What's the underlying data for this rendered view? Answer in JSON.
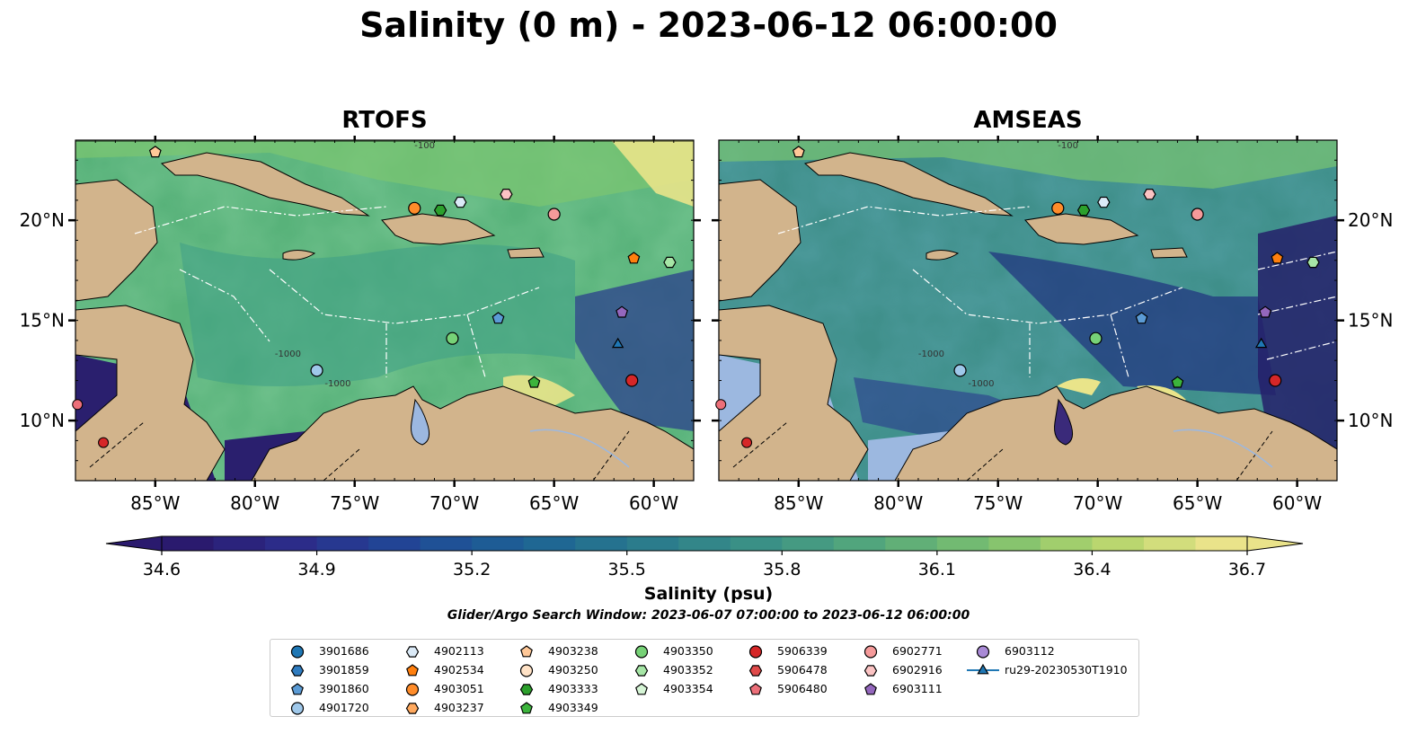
{
  "figure": {
    "suptitle": "Salinity (0 m) - 2023-06-12 06:00:00"
  },
  "chart_data": [
    {
      "type": "heatmap",
      "title": "RTOFS",
      "variable": "Salinity (0 m)",
      "xlim": [
        -89,
        -58
      ],
      "ylim": [
        7,
        24
      ],
      "xticks": [
        -85,
        -80,
        -75,
        -70,
        -65,
        -60
      ],
      "xtick_labels": [
        "85°W",
        "80°W",
        "75°W",
        "70°W",
        "65°W",
        "60°W"
      ],
      "yticks": [
        10,
        15,
        20
      ],
      "ytick_labels": [
        "10°N",
        "15°N",
        "20°N"
      ],
      "ytick_side": "left",
      "contour_labels": [
        "-1000",
        "-1000",
        "-100"
      ]
    },
    {
      "type": "heatmap",
      "title": "AMSEAS",
      "variable": "Salinity (0 m)",
      "xlim": [
        -89,
        -58
      ],
      "ylim": [
        7,
        24
      ],
      "xticks": [
        -85,
        -80,
        -75,
        -70,
        -65,
        -60
      ],
      "xtick_labels": [
        "85°W",
        "80°W",
        "75°W",
        "70°W",
        "65°W",
        "60°W"
      ],
      "yticks": [
        10,
        15,
        20
      ],
      "ytick_labels": [
        "10°N",
        "15°N",
        "20°N"
      ],
      "ytick_side": "right",
      "contour_labels": [
        "-1000",
        "-1000",
        "-100"
      ]
    },
    {
      "type": "scatter",
      "observations": [
        {
          "id": "3901686",
          "marker": "circle",
          "color": "#1f77b4"
        },
        {
          "id": "3901859",
          "marker": "hexagon",
          "color": "#2f7cc0"
        },
        {
          "id": "3901860",
          "marker": "pentagon",
          "color": "#5b9bd5",
          "lon": -67.8,
          "lat": 15.1
        },
        {
          "id": "4901720",
          "marker": "circle",
          "color": "#9fc8ea",
          "lon": -76.9,
          "lat": 12.5
        },
        {
          "id": "4902113",
          "marker": "hexagon",
          "color": "#dbeaf7",
          "lon": -69.7,
          "lat": 20.9
        },
        {
          "id": "4902534",
          "marker": "pentagon",
          "color": "#ff7f0e",
          "lon": -61.0,
          "lat": 18.1
        },
        {
          "id": "4903051",
          "marker": "circle",
          "color": "#ff8c2a",
          "lon": -72.0,
          "lat": 20.6
        },
        {
          "id": "4903237",
          "marker": "hexagon",
          "color": "#ffa95e"
        },
        {
          "id": "4903238",
          "marker": "pentagon",
          "color": "#ffc898",
          "lon": -85.0,
          "lat": 23.4
        },
        {
          "id": "4903250",
          "marker": "circle",
          "color": "#ffe2c6"
        },
        {
          "id": "4903333",
          "marker": "hexagon",
          "color": "#2ca02c",
          "lon": -70.7,
          "lat": 20.5
        },
        {
          "id": "4903349",
          "marker": "pentagon",
          "color": "#3cb43c",
          "lon": -66.0,
          "lat": 11.9
        },
        {
          "id": "4903350",
          "marker": "circle",
          "color": "#77d277",
          "lon": -70.1,
          "lat": 14.1
        },
        {
          "id": "4903352",
          "marker": "hexagon",
          "color": "#a6e6a6",
          "lon": -59.2,
          "lat": 17.9
        },
        {
          "id": "4903354",
          "marker": "pentagon",
          "color": "#d6f5d6"
        },
        {
          "id": "5906339",
          "marker": "circle",
          "color": "#d62728",
          "lon": -61.1,
          "lat": 12.0
        },
        {
          "id": "5906478",
          "marker": "hexagon",
          "color": "#e04a4a"
        },
        {
          "id": "5906480",
          "marker": "pentagon",
          "color": "#ec6f79"
        },
        {
          "id": "6902771",
          "marker": "circle",
          "color": "#f59a9a",
          "lon": -65.0,
          "lat": 20.3
        },
        {
          "id": "6902916",
          "marker": "hexagon",
          "color": "#fbc3c3",
          "lon": -67.4,
          "lat": 21.3
        },
        {
          "id": "6903111",
          "marker": "pentagon",
          "color": "#9467bd",
          "lon": -61.6,
          "lat": 15.4
        },
        {
          "id": "6903112",
          "marker": "circle",
          "color": "#a98ad6"
        },
        {
          "id": "ru29-20230530T1910",
          "marker": "triangle-line",
          "color": "#1f77b4",
          "lon": -61.8,
          "lat": 13.8
        }
      ],
      "extra_points": [
        {
          "lon": -88.9,
          "lat": 10.8,
          "color": "#ec6f79"
        },
        {
          "lon": -87.6,
          "lat": 8.9,
          "color": "#d62728"
        }
      ]
    }
  ],
  "colorbar": {
    "label": "Salinity (psu)",
    "vmin": 34.6,
    "vmax": 36.7,
    "tick_values": [
      34.6,
      34.9,
      35.2,
      35.5,
      35.8,
      36.1,
      36.4,
      36.7
    ],
    "tick_labels": [
      "34.6",
      "34.9",
      "35.2",
      "35.5",
      "35.8",
      "36.1",
      "36.4",
      "36.7"
    ],
    "colormap": "haline",
    "extend": "both"
  },
  "search_window": "Glider/Argo Search Window: 2023-06-07 07:00:00 to 2023-06-12 06:00:00",
  "colors": {
    "land": "#d2b48c",
    "pacific_amseas": "#9cb8e0",
    "high_salinity": "#eae38a",
    "low_salinity": "#2a1a6e"
  }
}
